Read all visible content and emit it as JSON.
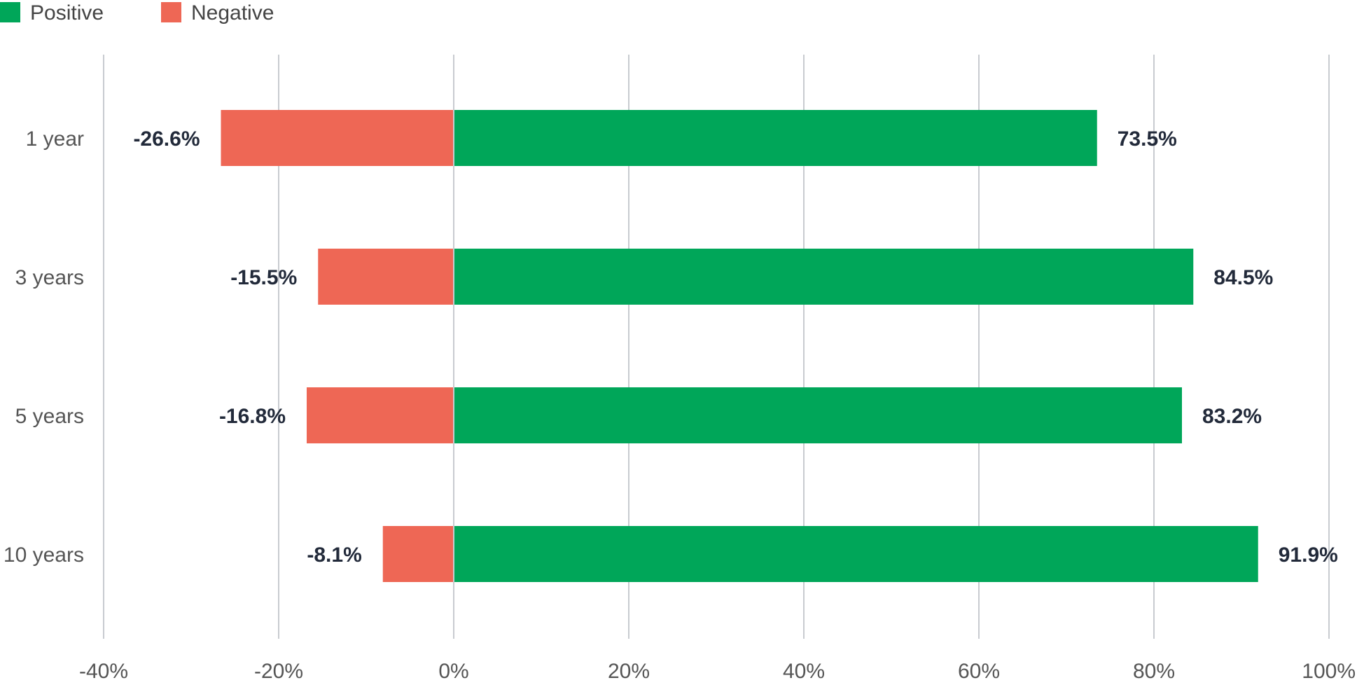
{
  "chart_data": {
    "type": "bar",
    "orientation": "horizontal",
    "stacked": "diverging",
    "categories": [
      "1 year",
      "3 years",
      "5 years",
      "10 years"
    ],
    "series": [
      {
        "name": "Positive",
        "values": [
          73.5,
          84.5,
          83.2,
          91.9
        ],
        "labels": [
          "73.5%",
          "84.5%",
          "83.2%",
          "91.9%"
        ],
        "color": "#00a659"
      },
      {
        "name": "Negative",
        "values": [
          -26.6,
          -15.5,
          -16.8,
          -8.1
        ],
        "labels": [
          "-26.6%",
          "-15.5%",
          "-16.8%",
          "-8.1%"
        ],
        "color": "#ee6755"
      }
    ],
    "xlim": [
      -40,
      100
    ],
    "xticks": [
      -40,
      -20,
      0,
      20,
      40,
      60,
      80,
      100
    ],
    "xtick_labels": [
      "-40%",
      "-20%",
      "0%",
      "20%",
      "40%",
      "60%",
      "80%",
      "100%"
    ],
    "grid": true,
    "legend_position": "top-left",
    "title": "",
    "xlabel": "",
    "ylabel": ""
  }
}
